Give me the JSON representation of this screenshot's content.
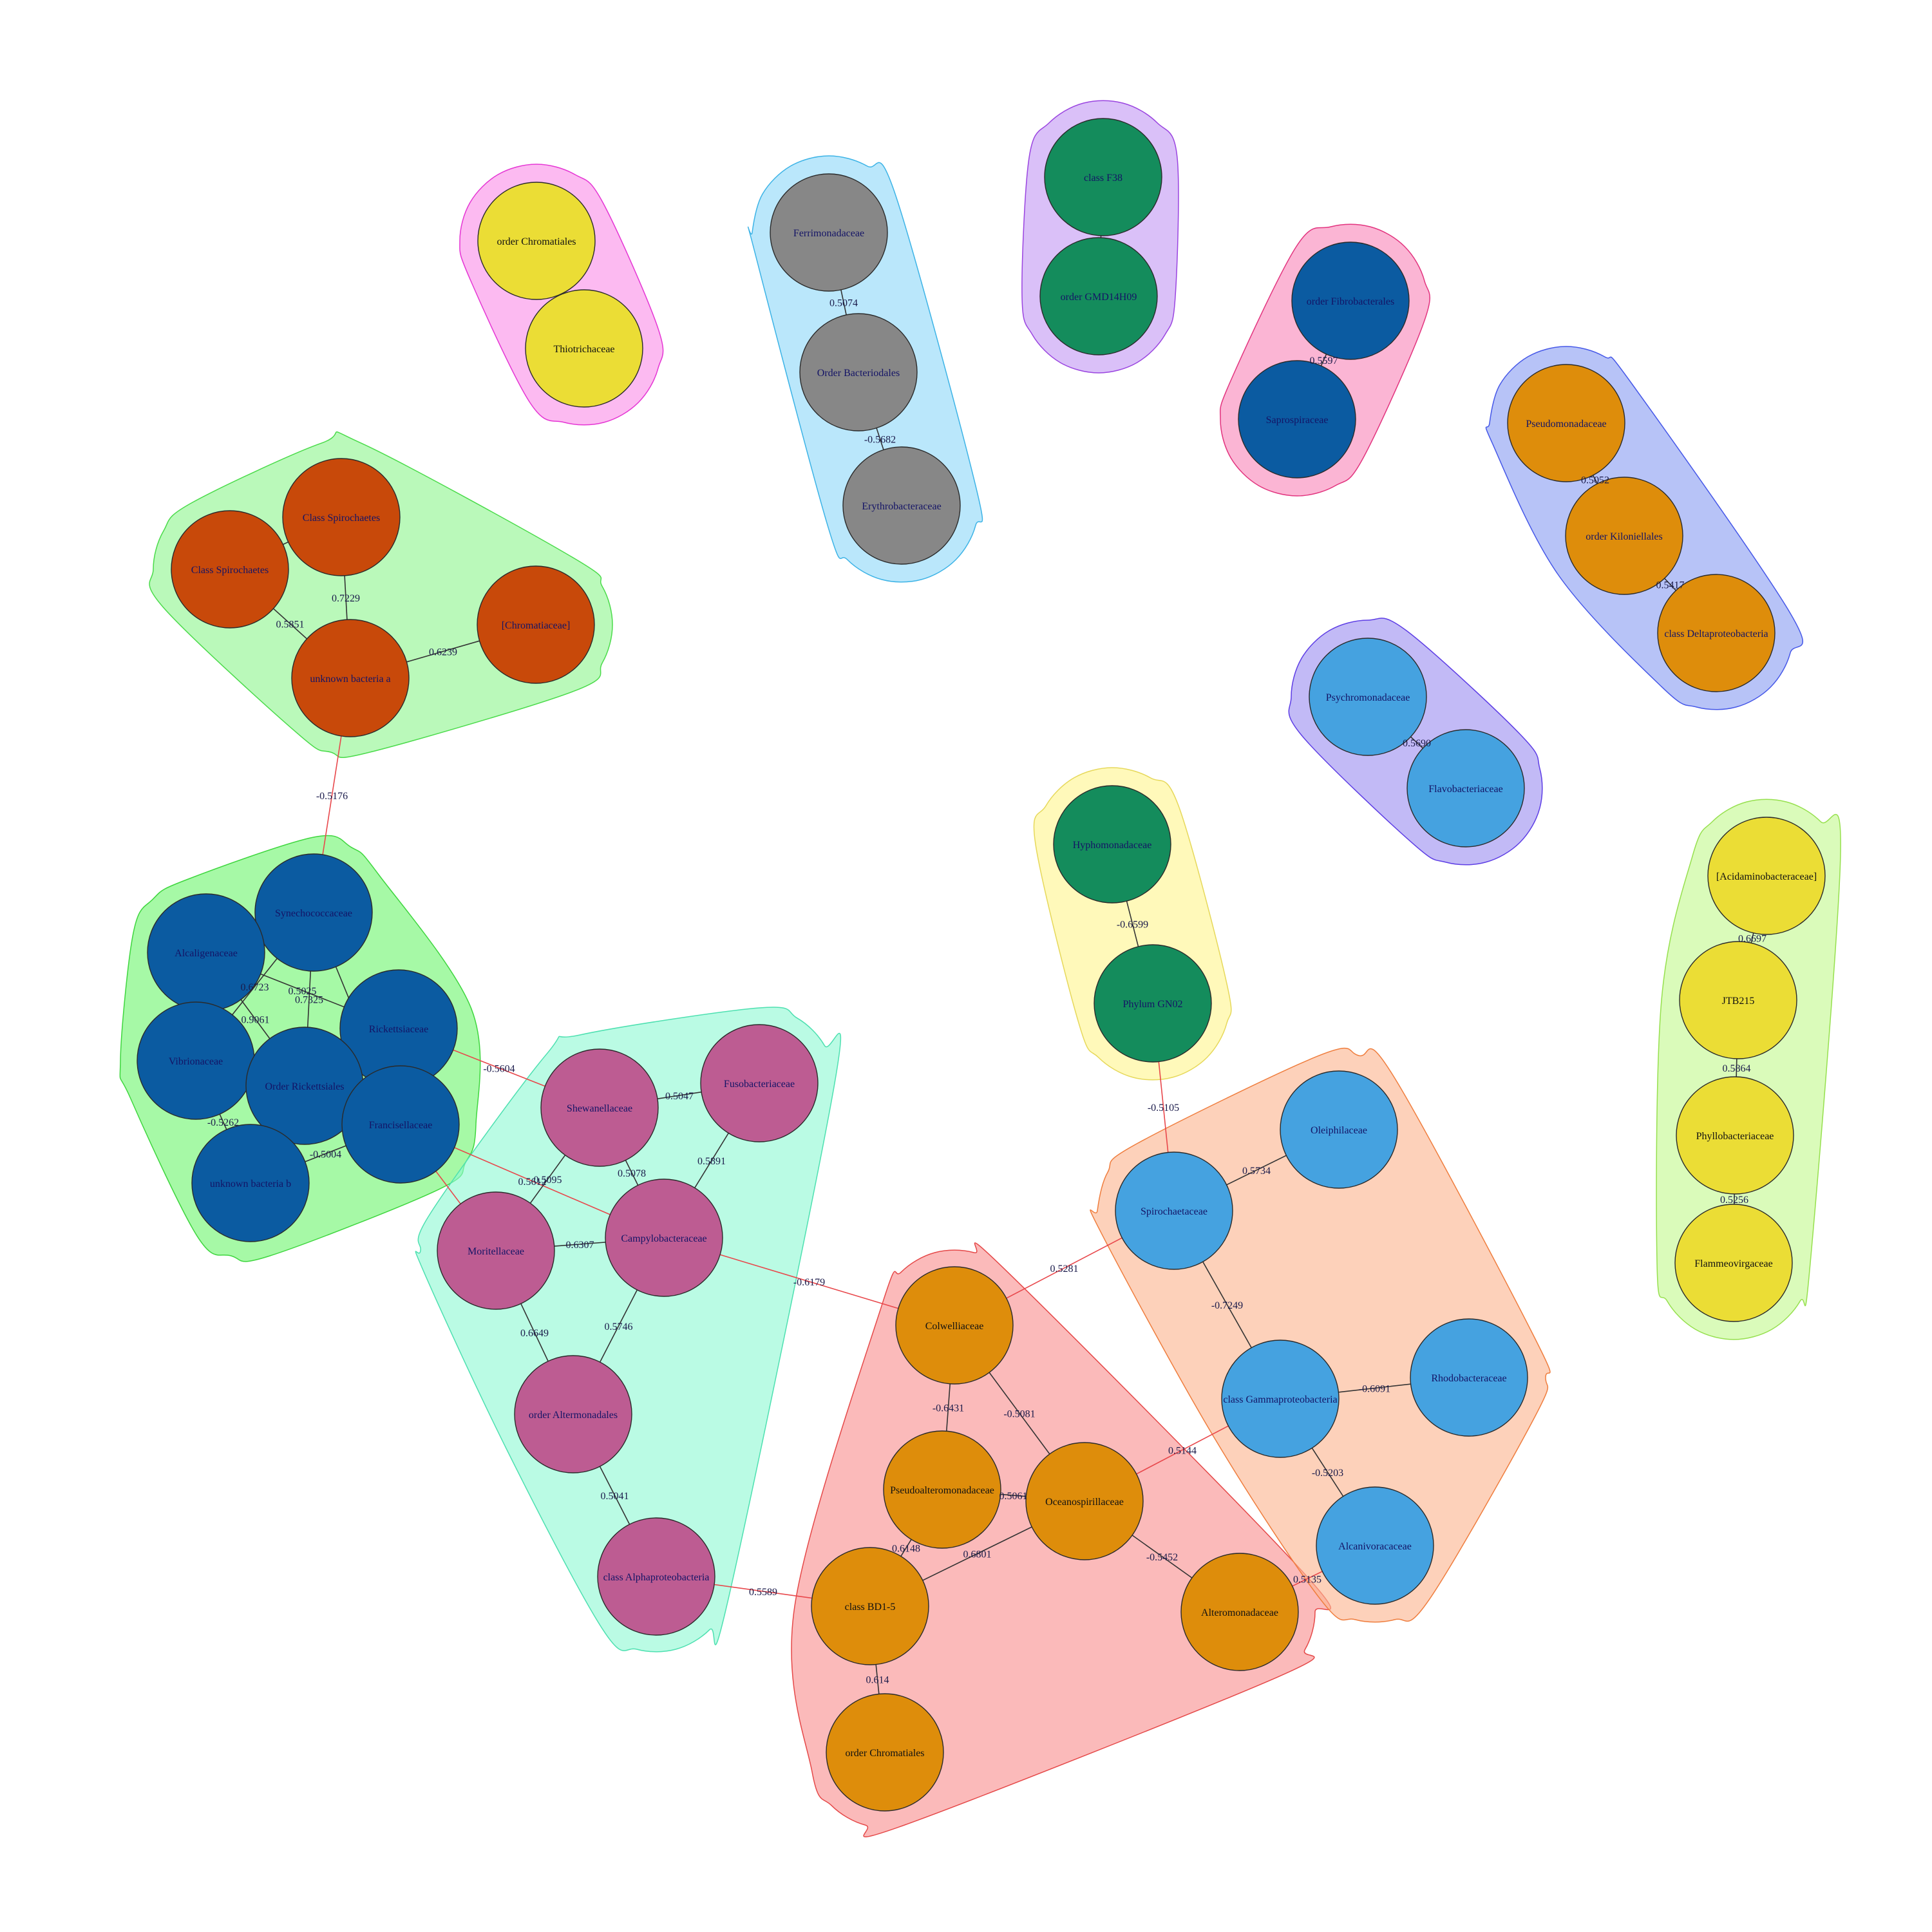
{
  "clusters": [
    {
      "id": "c1",
      "fill": "#fa8fe8",
      "stroke": "#e535d4",
      "members": [
        "chrom1",
        "thio"
      ]
    },
    {
      "id": "c2",
      "fill": "#8fd8f8",
      "stroke": "#3cb3e6",
      "members": [
        "ferri",
        "bacteriod",
        "erythro"
      ]
    },
    {
      "id": "c3",
      "fill": "#c39af3",
      "stroke": "#9a44e0",
      "members": [
        "f38",
        "gmd"
      ]
    },
    {
      "id": "c4",
      "fill": "#f987b9",
      "stroke": "#e2337e",
      "members": [
        "fibro",
        "sapro"
      ]
    },
    {
      "id": "c5",
      "fill": "#8b9ef2",
      "stroke": "#4557e8",
      "members": [
        "pseudomon",
        "kilon",
        "delta"
      ]
    },
    {
      "id": "c6",
      "fill": "#9c8ff1",
      "stroke": "#5d3de5",
      "members": [
        "psychro",
        "flavo"
      ]
    },
    {
      "id": "c7",
      "fill": "#8ff58f",
      "stroke": "#4adb4a",
      "members": [
        "spiro1",
        "spiro2",
        "chromsq",
        "unkA"
      ]
    },
    {
      "id": "c8",
      "fill": "#fff58f",
      "stroke": "#e6d85a",
      "members": [
        "hypho",
        "gn02"
      ]
    },
    {
      "id": "c9",
      "fill": "#c3f98f",
      "stroke": "#96e04e",
      "members": [
        "acid",
        "jtb",
        "phyllo",
        "flammeo"
      ]
    },
    {
      "id": "c10",
      "fill": "#70f570",
      "stroke": "#3ed63e",
      "members": [
        "synecho",
        "alcali",
        "rickettsiaceae",
        "vibrio",
        "ordrick",
        "franci",
        "unkB"
      ]
    },
    {
      "id": "c11",
      "fill": "#8ff8d4",
      "stroke": "#4de0b0",
      "members": [
        "shewa",
        "fuso",
        "moritella",
        "campylo",
        "altermon",
        "alphaprot"
      ]
    },
    {
      "id": "c12",
      "fill": "#f98f8f",
      "stroke": "#e54848",
      "members": [
        "colwell",
        "pseudoalt",
        "oceano",
        "bd15",
        "alteromon",
        "chrom2"
      ]
    },
    {
      "id": "c13",
      "fill": "#fcb58f",
      "stroke": "#ef7d3d",
      "members": [
        "spirochaet",
        "oleiph",
        "gamma",
        "rhodo",
        "alcaniv"
      ]
    }
  ],
  "nodes": [
    {
      "id": "chrom1",
      "label": "order Chromatiales",
      "color": "#ebdd35",
      "text": "#111111"
    },
    {
      "id": "thio",
      "label": "Thiotrichaceae",
      "color": "#ebdd35",
      "text": "#111111"
    },
    {
      "id": "ferri",
      "label": "Ferrimonadaceae",
      "color": "#878787",
      "text": "#141466"
    },
    {
      "id": "bacteriod",
      "label": "Order Bacteriodales",
      "color": "#878787",
      "text": "#141466"
    },
    {
      "id": "erythro",
      "label": "Erythrobacteraceae",
      "color": "#878787",
      "text": "#141466"
    },
    {
      "id": "f38",
      "label": "class F38",
      "color": "#148c5c",
      "text": "#141466"
    },
    {
      "id": "gmd",
      "label": "order GMD14H09",
      "color": "#148c5c",
      "text": "#141466"
    },
    {
      "id": "fibro",
      "label": "order Fibrobacterales",
      "color": "#0b5ba1",
      "text": "#141466"
    },
    {
      "id": "sapro",
      "label": "Saprospiraceae",
      "color": "#0b5ba1",
      "text": "#141466"
    },
    {
      "id": "pseudomon",
      "label": "Pseudomonadaceae",
      "color": "#de8d0b",
      "text": "#141466"
    },
    {
      "id": "kilon",
      "label": "order Kiloniellales",
      "color": "#de8d0b",
      "text": "#141466"
    },
    {
      "id": "delta",
      "label": "class Deltaproteobacteria",
      "color": "#de8d0b",
      "text": "#141466"
    },
    {
      "id": "psychro",
      "label": "Psychromonadaceae",
      "color": "#45a2e0",
      "text": "#141466"
    },
    {
      "id": "flavo",
      "label": "Flavobacteriaceae",
      "color": "#45a2e0",
      "text": "#141466"
    },
    {
      "id": "spiro1",
      "label": "Class Spirochaetes",
      "color": "#c8490a",
      "text": "#141466"
    },
    {
      "id": "spiro2",
      "label": "Class Spirochaetes",
      "color": "#c8490a",
      "text": "#141466"
    },
    {
      "id": "chromsq",
      "label": "[Chromatiaceae]",
      "color": "#c8490a",
      "text": "#141466"
    },
    {
      "id": "unkA",
      "label": "unknown bacteria a",
      "color": "#c8490a",
      "text": "#141466"
    },
    {
      "id": "hypho",
      "label": "Hyphomonadaceae",
      "color": "#148c5c",
      "text": "#141466"
    },
    {
      "id": "gn02",
      "label": "Phylum GN02",
      "color": "#148c5c",
      "text": "#141466"
    },
    {
      "id": "acid",
      "label": "[Acidaminobacteraceae]",
      "color": "#ebdd35",
      "text": "#111111"
    },
    {
      "id": "jtb",
      "label": "JTB215",
      "color": "#ebdd35",
      "text": "#111111"
    },
    {
      "id": "phyllo",
      "label": "Phyllobacteriaceae",
      "color": "#ebdd35",
      "text": "#111111"
    },
    {
      "id": "flammeo",
      "label": "Flammeovirgaceae",
      "color": "#ebdd35",
      "text": "#111111"
    },
    {
      "id": "synecho",
      "label": "Synechococcaceae",
      "color": "#0b5ba1",
      "text": "#141466"
    },
    {
      "id": "alcali",
      "label": "Alcaligenaceae",
      "color": "#0b5ba1",
      "text": "#141466"
    },
    {
      "id": "rickettsiaceae",
      "label": "Rickettsiaceae",
      "color": "#0b5ba1",
      "text": "#141466"
    },
    {
      "id": "vibrio",
      "label": "Vibrionaceae",
      "color": "#0b5ba1",
      "text": "#141466"
    },
    {
      "id": "ordrick",
      "label": "Order Rickettsiales",
      "color": "#0b5ba1",
      "text": "#141466"
    },
    {
      "id": "franci",
      "label": "Francisellaceae",
      "color": "#0b5ba1",
      "text": "#141466"
    },
    {
      "id": "unkB",
      "label": "unknown bacteria b",
      "color": "#0b5ba1",
      "text": "#141466"
    },
    {
      "id": "shewa",
      "label": "Shewanellaceae",
      "color": "#bd5c92",
      "text": "#141466"
    },
    {
      "id": "fuso",
      "label": "Fusobacteriaceae",
      "color": "#bd5c92",
      "text": "#141466"
    },
    {
      "id": "moritella",
      "label": "Moritellaceae",
      "color": "#bd5c92",
      "text": "#141466"
    },
    {
      "id": "campylo",
      "label": "Campylobacteraceae",
      "color": "#bd5c92",
      "text": "#141466"
    },
    {
      "id": "altermon",
      "label": "order Altermonadales",
      "color": "#bd5c92",
      "text": "#141466"
    },
    {
      "id": "alphaprot",
      "label": "class Alphaproteobacteria",
      "color": "#bd5c92",
      "text": "#141466"
    },
    {
      "id": "colwell",
      "label": "Colwelliaceae",
      "color": "#de8d0b",
      "text": "#111111"
    },
    {
      "id": "pseudoalt",
      "label": "Pseudoalteromonadaceae",
      "color": "#de8d0b",
      "text": "#111111"
    },
    {
      "id": "oceano",
      "label": "Oceanospirillaceae",
      "color": "#de8d0b",
      "text": "#111111"
    },
    {
      "id": "bd15",
      "label": "class BD1-5",
      "color": "#de8d0b",
      "text": "#111111"
    },
    {
      "id": "alteromon",
      "label": "Alteromonadaceae",
      "color": "#de8d0b",
      "text": "#111111"
    },
    {
      "id": "chrom2",
      "label": "order Chromatiales",
      "color": "#de8d0b",
      "text": "#111111"
    },
    {
      "id": "spirochaet",
      "label": "Spirochaetaceae",
      "color": "#45a2e0",
      "text": "#141466"
    },
    {
      "id": "oleiph",
      "label": "Oleiphilaceae",
      "color": "#45a2e0",
      "text": "#141466"
    },
    {
      "id": "gamma",
      "label": "class Gammaproteobacteria",
      "color": "#45a2e0",
      "text": "#141466"
    },
    {
      "id": "rhodo",
      "label": "Rhodobacteraceae",
      "color": "#45a2e0",
      "text": "#141466"
    },
    {
      "id": "alcaniv",
      "label": "Alcanivoracaceae",
      "color": "#45a2e0",
      "text": "#141466"
    }
  ],
  "edges": [
    {
      "source": "chrom1",
      "target": "thio",
      "label": "",
      "color": "#333333"
    },
    {
      "source": "ferri",
      "target": "bacteriod",
      "label": "0.5074",
      "color": "#333333"
    },
    {
      "source": "bacteriod",
      "target": "erythro",
      "label": "-0.5682",
      "color": "#333333"
    },
    {
      "source": "f38",
      "target": "gmd",
      "label": "",
      "color": "#333333"
    },
    {
      "source": "fibro",
      "target": "sapro",
      "label": "0.5597",
      "color": "#333333"
    },
    {
      "source": "pseudomon",
      "target": "kilon",
      "label": "0.5052",
      "color": "#333333"
    },
    {
      "source": "kilon",
      "target": "delta",
      "label": "0.5417",
      "color": "#333333"
    },
    {
      "source": "psychro",
      "target": "flavo",
      "label": "0.5690",
      "color": "#333333"
    },
    {
      "source": "spiro1",
      "target": "spiro2",
      "label": "",
      "color": "#333333"
    },
    {
      "source": "spiro2",
      "target": "unkA",
      "label": "0.5851",
      "color": "#333333"
    },
    {
      "source": "spiro1",
      "target": "unkA",
      "label": "0.7229",
      "color": "#333333"
    },
    {
      "source": "chromsq",
      "target": "unkA",
      "label": "0.6239",
      "color": "#333333"
    },
    {
      "source": "unkA",
      "target": "synecho",
      "label": "-0.5176",
      "color": "#e8474b"
    },
    {
      "source": "hypho",
      "target": "gn02",
      "label": "-0.6599",
      "color": "#333333"
    },
    {
      "source": "gn02",
      "target": "spirochaet",
      "label": "-0.5105",
      "color": "#e8474b"
    },
    {
      "source": "acid",
      "target": "jtb",
      "label": "0.6697",
      "color": "#333333"
    },
    {
      "source": "jtb",
      "target": "phyllo",
      "label": "0.5864",
      "color": "#333333"
    },
    {
      "source": "phyllo",
      "target": "flammeo",
      "label": "0.5256",
      "color": "#333333"
    },
    {
      "source": "synecho",
      "target": "alcali",
      "label": "",
      "color": "#333333"
    },
    {
      "source": "synecho",
      "target": "vibrio",
      "label": "0.6723",
      "color": "#333333"
    },
    {
      "source": "synecho",
      "target": "ordrick",
      "label": "0.7325",
      "color": "#333333"
    },
    {
      "source": "synecho",
      "target": "franci",
      "label": "",
      "color": "#333333"
    },
    {
      "source": "alcali",
      "target": "rickettsiaceae",
      "label": "0.5025",
      "color": "#333333"
    },
    {
      "source": "alcali",
      "target": "ordrick",
      "label": "0.9061",
      "color": "#333333"
    },
    {
      "source": "vibrio",
      "target": "ordrick",
      "label": "",
      "color": "#333333"
    },
    {
      "source": "vibrio",
      "target": "unkB",
      "label": "-0.5262",
      "color": "#333333"
    },
    {
      "source": "unkB",
      "target": "franci",
      "label": "-0.5004",
      "color": "#333333"
    },
    {
      "source": "rickettsiaceae",
      "target": "shewa",
      "label": "-0.5604",
      "color": "#e8474b"
    },
    {
      "source": "franci",
      "target": "campylo",
      "label": "0.5612",
      "color": "#e8474b"
    },
    {
      "source": "franci",
      "target": "moritella",
      "label": "",
      "color": "#e8474b"
    },
    {
      "source": "shewa",
      "target": "fuso",
      "label": "0.5047",
      "color": "#333333"
    },
    {
      "source": "shewa",
      "target": "moritella",
      "label": "0.5095",
      "color": "#333333"
    },
    {
      "source": "shewa",
      "target": "campylo",
      "label": "0.5078",
      "color": "#333333"
    },
    {
      "source": "fuso",
      "target": "campylo",
      "label": "0.5891",
      "color": "#333333"
    },
    {
      "source": "moritella",
      "target": "campylo",
      "label": "0.6307",
      "color": "#333333"
    },
    {
      "source": "moritella",
      "target": "altermon",
      "label": "0.6649",
      "color": "#333333"
    },
    {
      "source": "campylo",
      "target": "altermon",
      "label": "0.5746",
      "color": "#333333"
    },
    {
      "source": "altermon",
      "target": "alphaprot",
      "label": "0.5041",
      "color": "#333333"
    },
    {
      "source": "alphaprot",
      "target": "bd15",
      "label": "0.5589",
      "color": "#e8474b"
    },
    {
      "source": "campylo",
      "target": "colwell",
      "label": "-0.6179",
      "color": "#e8474b"
    },
    {
      "source": "colwell",
      "target": "pseudoalt",
      "label": "-0.6431",
      "color": "#333333"
    },
    {
      "source": "colwell",
      "target": "oceano",
      "label": "-0.5081",
      "color": "#333333"
    },
    {
      "source": "colwell",
      "target": "spirochaet",
      "label": "0.5281",
      "color": "#e8474b"
    },
    {
      "source": "pseudoalt",
      "target": "oceano",
      "label": "0.5061",
      "color": "#333333"
    },
    {
      "source": "pseudoalt",
      "target": "bd15",
      "label": "0.6148",
      "color": "#333333"
    },
    {
      "source": "oceano",
      "target": "bd15",
      "label": "0.6801",
      "color": "#333333"
    },
    {
      "source": "oceano",
      "target": "alteromon",
      "label": "-0.5452",
      "color": "#333333"
    },
    {
      "source": "oceano",
      "target": "gamma",
      "label": "0.5144",
      "color": "#e8474b"
    },
    {
      "source": "bd15",
      "target": "chrom2",
      "label": "0.614",
      "color": "#333333"
    },
    {
      "source": "alteromon",
      "target": "alcaniv",
      "label": "0.5135",
      "color": "#e8474b"
    },
    {
      "source": "spirochaet",
      "target": "oleiph",
      "label": "0.5734",
      "color": "#333333"
    },
    {
      "source": "spirochaet",
      "target": "gamma",
      "label": "-0.7249",
      "color": "#333333"
    },
    {
      "source": "gamma",
      "target": "rhodo",
      "label": "-0.6091",
      "color": "#333333"
    },
    {
      "source": "gamma",
      "target": "alcaniv",
      "label": "-0.5203",
      "color": "#333333"
    }
  ]
}
